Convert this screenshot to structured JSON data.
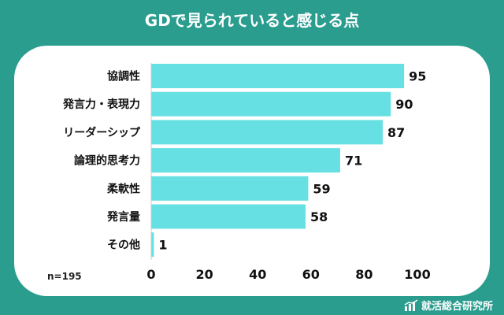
{
  "title": "GDで見られていると感じる点",
  "footnote": "n=195",
  "brand": {
    "name": "就活総合研究所",
    "icon": "bar-chart-logo-icon"
  },
  "colors": {
    "background": "#2a9d8f",
    "bar": "#67e0e3",
    "card": "#ffffff",
    "text": "#111111"
  },
  "chart_data": {
    "type": "bar",
    "orientation": "horizontal",
    "categories": [
      "協調性",
      "発言力・表現力",
      "リーダーシップ",
      "論理的思考力",
      "柔軟性",
      "発言量",
      "その他"
    ],
    "values": [
      95,
      90,
      87,
      71,
      59,
      58,
      1
    ],
    "xlim": [
      0,
      100
    ],
    "xticks": [
      0,
      20,
      40,
      60,
      80,
      100
    ],
    "grid": false,
    "legend": "none"
  }
}
